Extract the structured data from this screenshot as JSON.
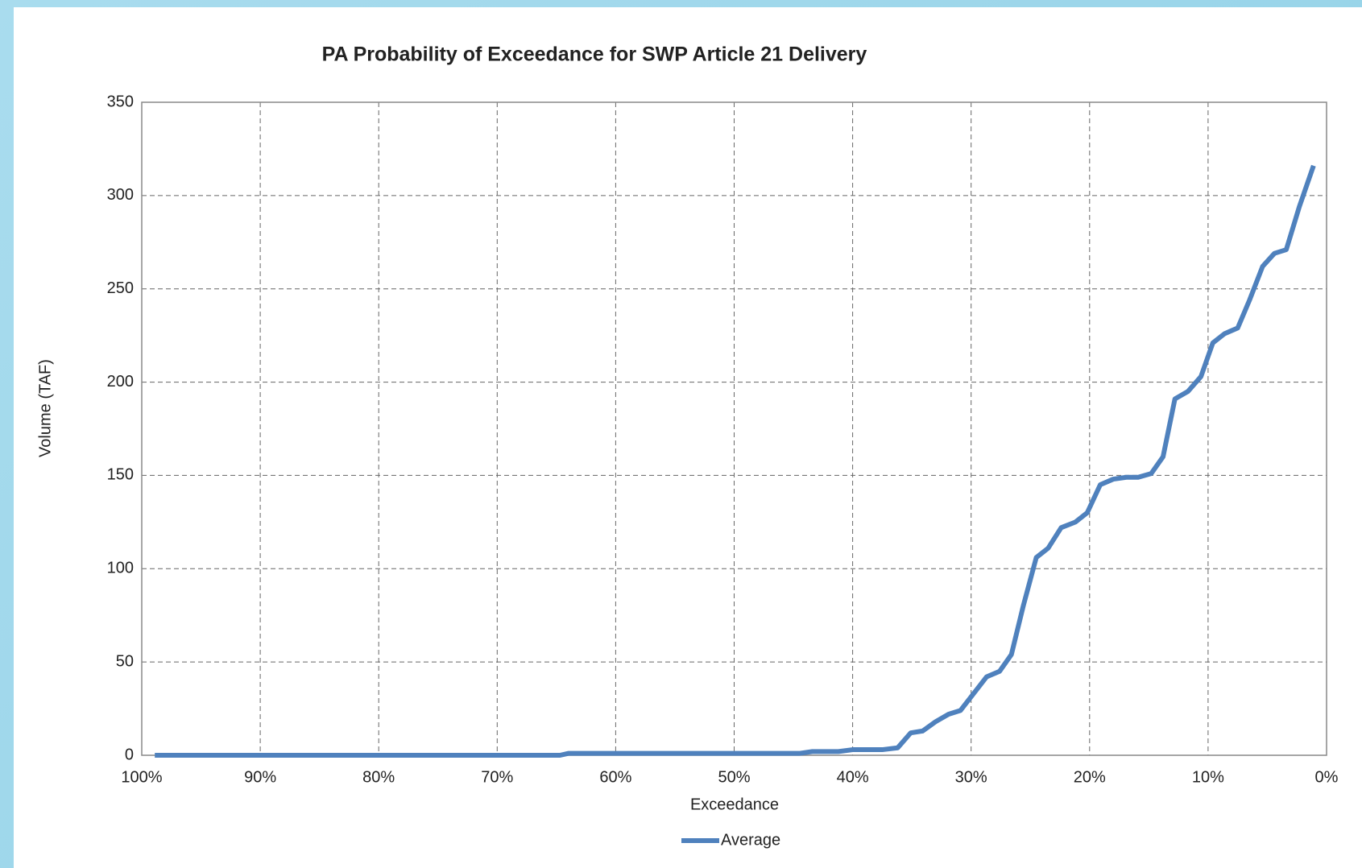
{
  "chart_data": {
    "type": "line",
    "title": "PA Probability of Exceedance for SWP Article 21 Delivery",
    "x_label": "Exceedance",
    "y_label": "Volume (TAF)",
    "x": [
      98.9,
      64.7,
      64,
      44.5,
      43.4,
      41.2,
      40,
      37.5,
      36.2,
      35.1,
      34.1,
      33,
      31.9,
      30.9,
      29.8,
      28.7,
      27.6,
      26.6,
      25.6,
      24.5,
      23.5,
      22.4,
      21.2,
      20.2,
      19.1,
      18,
      16.9,
      15.9,
      14.8,
      13.8,
      12.8,
      11.7,
      10.6,
      9.6,
      8.6,
      7.5,
      6.5,
      5.4,
      4.4,
      3.4,
      2.3,
      1.1
    ],
    "series": [
      {
        "name": "Average",
        "color": "#4f81bd",
        "values": [
          0,
          0,
          1,
          1,
          2,
          2,
          3,
          3,
          4,
          12,
          13,
          18,
          22,
          24,
          33,
          42,
          45,
          54,
          80,
          106,
          111,
          122,
          125,
          130,
          145,
          148,
          149,
          149,
          151,
          160,
          191,
          195,
          203,
          221,
          226,
          229,
          244,
          262,
          269,
          271,
          294,
          316
        ]
      }
    ],
    "xlim": [
      100,
      0
    ],
    "xticks": [
      {
        "value": 100,
        "label": "100%"
      },
      {
        "value": 90,
        "label": "90%"
      },
      {
        "value": 80,
        "label": "80%"
      },
      {
        "value": 70,
        "label": "70%"
      },
      {
        "value": 60,
        "label": "60%"
      },
      {
        "value": 50,
        "label": "50%"
      },
      {
        "value": 40,
        "label": "40%"
      },
      {
        "value": 30,
        "label": "30%"
      },
      {
        "value": 20,
        "label": "20%"
      },
      {
        "value": 10,
        "label": "10%"
      },
      {
        "value": 0,
        "label": "0%"
      }
    ],
    "ylim": [
      0,
      350
    ],
    "yticks": [
      0,
      50,
      100,
      150,
      200,
      250,
      300,
      350
    ],
    "grid": true,
    "legend": "bottom"
  }
}
